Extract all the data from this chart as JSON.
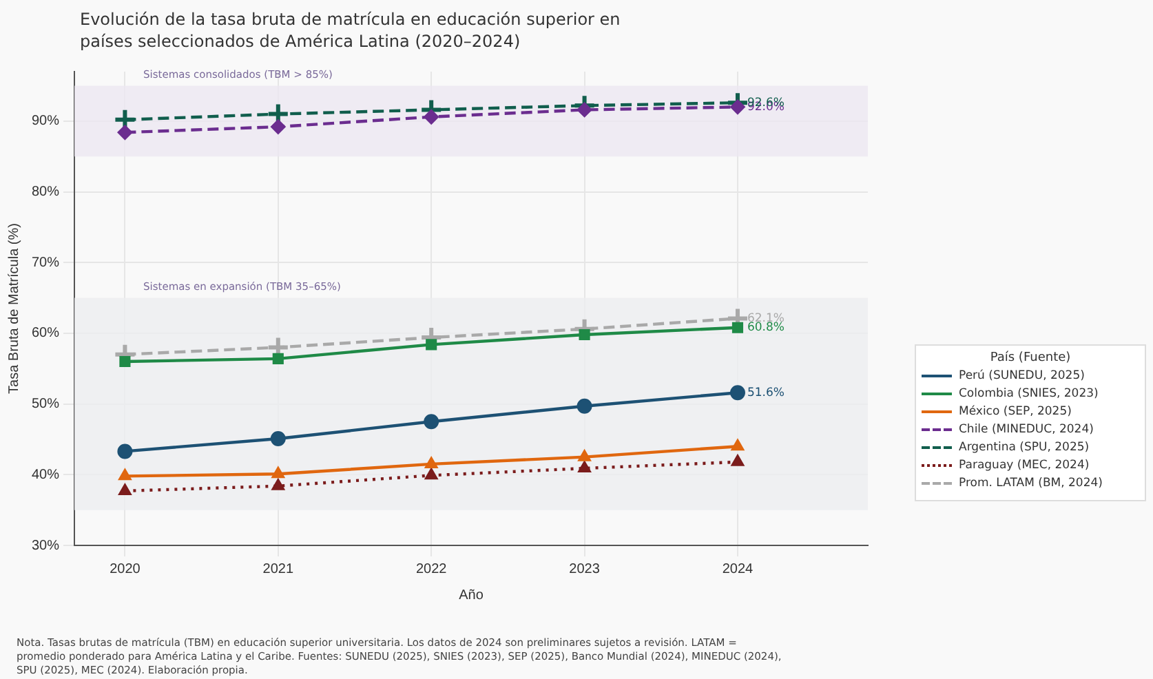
{
  "chart_data": {
    "type": "line",
    "title": "Evolución de la tasa bruta de matrícula en educación superior en países seleccionados de América Latina (2020–2024)",
    "xlabel": "Año",
    "ylabel": "Tasa Bruta de Matrícula (%)",
    "legend_title": "País (Fuente)",
    "legend": "right",
    "grid": true,
    "x": [
      2020,
      2021,
      2022,
      2023,
      2024
    ],
    "xlim": [
      2019.67,
      2024.85
    ],
    "xticks": [
      2020,
      2021,
      2022,
      2023,
      2024
    ],
    "ylim": [
      30,
      97
    ],
    "yticks": [
      {
        "value": 30,
        "label": "30%"
      },
      {
        "value": 40,
        "label": "40%"
      },
      {
        "value": 50,
        "label": "50%"
      },
      {
        "value": 60,
        "label": "60%"
      },
      {
        "value": 70,
        "label": "70%"
      },
      {
        "value": 80,
        "label": "80%"
      },
      {
        "value": 90,
        "label": "90%"
      }
    ],
    "bands": [
      {
        "axis": "y",
        "from": 85,
        "to": 95,
        "label": "Sistemas consolidados (TBM > 85%)",
        "color": "#ece7f1"
      },
      {
        "axis": "y",
        "from": 35,
        "to": 65,
        "label": "Sistemas en expansión (TBM 35–65%)",
        "color": "#eceef0"
      }
    ],
    "series": [
      {
        "name": "Perú (SUNEDU, 2025)",
        "color": "#1d5174",
        "marker": "circle",
        "line_style": "solid",
        "values": [
          43.3,
          45.1,
          47.5,
          49.7,
          51.6
        ],
        "value_labels": [
          null,
          null,
          null,
          null,
          "51.6%"
        ]
      },
      {
        "name": "Colombia (SNIES, 2023)",
        "color": "#1f8a47",
        "marker": "square",
        "line_style": "solid",
        "values": [
          56.0,
          56.4,
          58.4,
          59.8,
          60.8
        ],
        "value_labels": [
          null,
          null,
          null,
          null,
          "60.8%"
        ]
      },
      {
        "name": "México (SEP, 2025)",
        "color": "#e0670f",
        "marker": "triangle",
        "line_style": "solid",
        "values": [
          39.8,
          40.1,
          41.5,
          42.5,
          44.0
        ]
      },
      {
        "name": "Chile (MINEDUC, 2024)",
        "color": "#6b2d8f",
        "marker": "diamond",
        "line_style": "dashed",
        "values": [
          88.4,
          89.2,
          90.6,
          91.6,
          92.0
        ],
        "value_labels": [
          null,
          null,
          null,
          null,
          "92.0%"
        ]
      },
      {
        "name": "Argentina (SPU, 2025)",
        "color": "#115e4d",
        "marker": "cross",
        "line_style": "dashed",
        "values": [
          90.2,
          91.0,
          91.6,
          92.2,
          92.6
        ],
        "value_labels": [
          null,
          null,
          null,
          null,
          "92.6%"
        ]
      },
      {
        "name": "Paraguay (MEC, 2024)",
        "color": "#7b1c1c",
        "marker": "triangle",
        "line_style": "dotted",
        "values": [
          37.7,
          38.4,
          39.9,
          40.9,
          41.8
        ]
      },
      {
        "name": "Prom. LATAM (BM, 2024)",
        "color": "#a9a9a9",
        "marker": "cross",
        "line_style": "dashed",
        "values": [
          57.0,
          58.0,
          59.4,
          60.6,
          62.1
        ],
        "value_labels": [
          null,
          null,
          null,
          null,
          "62.1%"
        ]
      }
    ],
    "annotations": [
      "Nota. Tasas brutas de matrícula (TBM) en educación superior universitaria. Los datos de 2024 son preliminares sujetos a revisión. LATAM = promedio ponderado para América Latina y el Caribe. Fuentes: SUNEDU (2025), SNIES (2023), SEP (2025), Banco Mundial (2024), MINEDUC (2024), SPU (2025), MEC (2024). Elaboración propia."
    ]
  }
}
